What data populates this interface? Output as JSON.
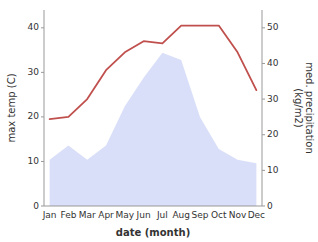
{
  "chart_data": {
    "type": "line",
    "xlabel": "date (month)",
    "ylabel": "max temp (C)",
    "y2label": "med. precipitation\n(kg/m2)",
    "categories": [
      "Jan",
      "Feb",
      "Mar",
      "Apr",
      "May",
      "Jun",
      "Jul",
      "Aug",
      "Sep",
      "Oct",
      "Nov",
      "Dec"
    ],
    "series": [
      {
        "type": "area",
        "axis": "y2",
        "color": "#c5cef5",
        "values": [
          13.0,
          17.0,
          13.0,
          17.0,
          28.0,
          36.0,
          43.0,
          41.0,
          25.0,
          16.0,
          13.0,
          12.0
        ]
      },
      {
        "type": "line",
        "color": "#c0504d",
        "values": [
          19.5,
          20.0,
          24.0,
          30.5,
          34.5,
          37.0,
          36.5,
          40.5,
          40.5,
          40.5,
          34.5,
          26.0
        ]
      }
    ],
    "ylim": [
      0,
      44
    ],
    "yticks": [
      0,
      10,
      20,
      30,
      40
    ],
    "y2lim": [
      0,
      55
    ],
    "y2ticks": [
      0,
      10,
      20,
      30,
      40,
      50
    ],
    "grid": false
  }
}
